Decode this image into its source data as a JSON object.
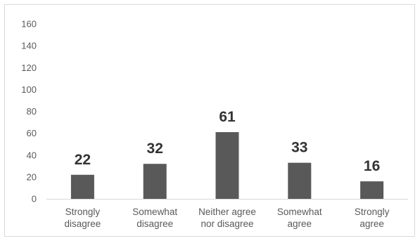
{
  "chart_data": {
    "type": "bar",
    "categories": [
      [
        "Strongly",
        "disagree"
      ],
      [
        "Somewhat",
        "disagree"
      ],
      [
        "Neither agree",
        "nor disagree"
      ],
      [
        "Somewhat",
        "agree"
      ],
      [
        "Strongly",
        "agree"
      ]
    ],
    "values": [
      22,
      32,
      61,
      33,
      16
    ],
    "data_labels": [
      "22",
      "32",
      "61",
      "33",
      "16"
    ],
    "title": "",
    "xlabel": "",
    "ylabel": "",
    "ylim": [
      0,
      160
    ],
    "yticks": [
      0,
      20,
      40,
      60,
      80,
      100,
      120,
      140,
      160
    ],
    "grid": false,
    "legend": "none",
    "colors": {
      "bar": "#595959",
      "axis": "#d9d9d9",
      "text": "#595959",
      "label": "#333333"
    }
  }
}
